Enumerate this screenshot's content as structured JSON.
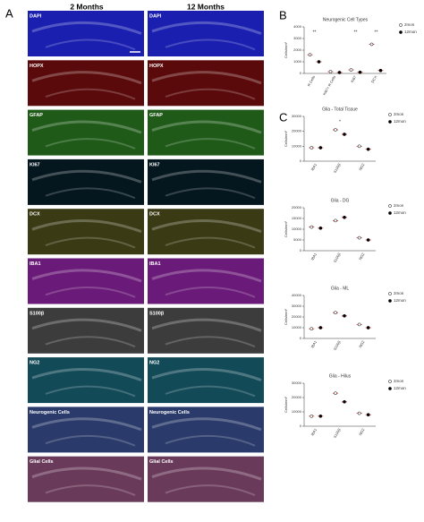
{
  "figure": {
    "panel_a": {
      "label": "A",
      "columns": [
        "2 Months",
        "12 Months"
      ],
      "rows": [
        "DAPI",
        "HOPX",
        "GFAP",
        "KI67",
        "DCX",
        "IBA1",
        "S100β",
        "NG2",
        "Neurogenic Cells",
        "Glial Cells"
      ],
      "colors": [
        "#1a1fb0",
        "#5a0a0a",
        "#1f5a18",
        "#04161e",
        "#3a3a14",
        "#6a1a78",
        "#3c3c3c",
        "#134a58",
        "#2a3a6a",
        "#6a3a5a"
      ]
    },
    "panel_b": {
      "label": "B"
    },
    "panel_c": {
      "label": "C"
    }
  },
  "chart_data": [
    {
      "type": "dot",
      "title": "Neurogenic Cell Types",
      "ylabel": "Cells/mm²",
      "categories": [
        "R Cells",
        "Ki67+ R Cells",
        "Ki67",
        "DCX"
      ],
      "series": [
        {
          "name": "2mon",
          "color": "#000000",
          "values": [
            1600,
            150,
            300,
            2500
          ]
        },
        {
          "name": "12mon",
          "color": "#000000",
          "values": [
            1000,
            80,
            100,
            250
          ]
        }
      ],
      "mean_color": "#e03030",
      "significance": [
        "**",
        null,
        "**",
        "**"
      ],
      "ylim": [
        0,
        4000
      ],
      "yticks": [
        0,
        1000,
        2000,
        3000,
        4000
      ]
    },
    {
      "type": "dot",
      "title": "Glia - Total Tissue",
      "ylabel": "Cells/mm²",
      "categories": [
        "IBA1",
        "S100β",
        "NG2"
      ],
      "series": [
        {
          "name": "2mon",
          "color": "#000000",
          "values": [
            9000,
            21000,
            10000
          ]
        },
        {
          "name": "12mon",
          "color": "#000000",
          "values": [
            9000,
            18000,
            8000
          ]
        }
      ],
      "mean_color": "#e03030",
      "significance": [
        null,
        "*",
        null
      ],
      "ylim": [
        0,
        30000
      ],
      "yticks": [
        0,
        10000,
        20000,
        30000
      ]
    },
    {
      "type": "dot",
      "title": "Glia - DG",
      "ylabel": "Cells/mm²",
      "categories": [
        "IBA1",
        "S100β",
        "NG2"
      ],
      "series": [
        {
          "name": "2mon",
          "color": "#000000",
          "values": [
            11000,
            14000,
            6000
          ]
        },
        {
          "name": "12mon",
          "color": "#000000",
          "values": [
            10500,
            15500,
            5000
          ]
        }
      ],
      "mean_color": "#e03030",
      "ylim": [
        0,
        20000
      ],
      "yticks": [
        0,
        5000,
        10000,
        15000,
        20000
      ]
    },
    {
      "type": "dot",
      "title": "Glia - ML",
      "ylabel": "Cells/mm²",
      "categories": [
        "IBA1",
        "S100β",
        "NG2"
      ],
      "series": [
        {
          "name": "2mon",
          "color": "#000000",
          "values": [
            9000,
            24000,
            13000
          ]
        },
        {
          "name": "12mon",
          "color": "#000000",
          "values": [
            10000,
            21000,
            10000
          ]
        }
      ],
      "mean_color": "#e03030",
      "ylim": [
        0,
        40000
      ],
      "yticks": [
        0,
        10000,
        20000,
        30000,
        40000
      ]
    },
    {
      "type": "dot",
      "title": "Glia - Hilus",
      "ylabel": "Cells/mm²",
      "categories": [
        "IBA1",
        "S100β",
        "NG2"
      ],
      "series": [
        {
          "name": "2mon",
          "color": "#000000",
          "values": [
            7000,
            23000,
            9000
          ]
        },
        {
          "name": "12mon",
          "color": "#000000",
          "values": [
            7000,
            17000,
            8000
          ]
        }
      ],
      "mean_color": "#e03030",
      "ylim": [
        0,
        30000
      ],
      "yticks": [
        0,
        10000,
        20000,
        30000
      ]
    }
  ]
}
